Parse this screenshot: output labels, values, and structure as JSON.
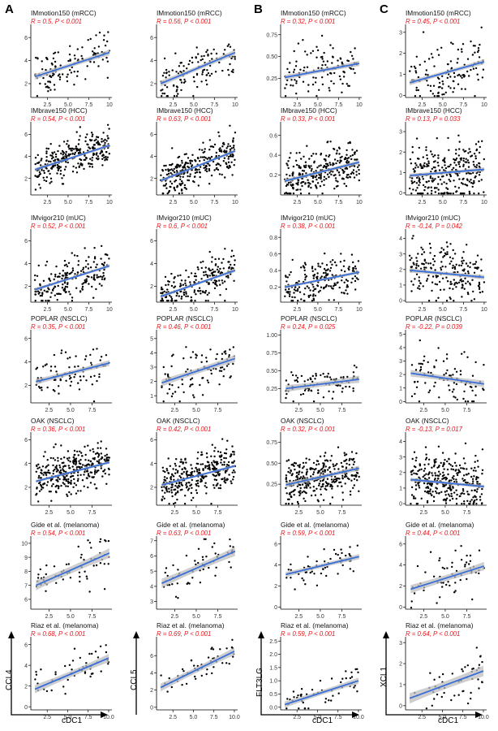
{
  "panel_letters": [
    "A",
    "B",
    "C"
  ],
  "colors": {
    "fit": "#3A6FD8",
    "band": "#BDBDBD",
    "point": "#000000",
    "stat": "#E8161B"
  },
  "axis_labels": {
    "x": "cDC1",
    "y": [
      "CCL4",
      "CCL5",
      "FLT3LG",
      "XCL1"
    ]
  },
  "cohorts": [
    "IMmotion150 (mRCC)",
    "IMbrave150 (HCC)",
    "IMvigor210 (mUC)",
    "POPLAR (NSCLC)",
    "OAK (NSCLC)",
    "Gide et al. (melanoma)",
    "Riaz et al. (melanoma)"
  ],
  "chart_data": [
    {
      "type": "scatter",
      "gene": "CCL4",
      "cohort": "IMmotion150 (mRCC)",
      "stat": "R = 0.5, P < 0.001",
      "xticks": [
        "2.5",
        "5.0",
        "7.5",
        "10"
      ],
      "yticks": [
        "2",
        "4",
        "6"
      ],
      "xlim": [
        0.5,
        10.3
      ],
      "ylim": [
        0.8,
        7.0
      ],
      "fit": [
        [
          1,
          2.6
        ],
        [
          10,
          4.7
        ]
      ],
      "band": 0.25,
      "n": 120,
      "sd": 0.9
    },
    {
      "type": "scatter",
      "gene": "CCL5",
      "cohort": "IMmotion150 (mRCC)",
      "stat": "R = 0.56, P < 0.001",
      "xticks": [
        "2.5",
        "5.0",
        "7.5",
        "10"
      ],
      "yticks": [
        "2",
        "4",
        "6"
      ],
      "xlim": [
        0.5,
        10.3
      ],
      "ylim": [
        0.8,
        7.0
      ],
      "fit": [
        [
          1,
          2.0
        ],
        [
          10,
          4.7
        ]
      ],
      "band": 0.25,
      "n": 120,
      "sd": 1.0
    },
    {
      "type": "scatter",
      "gene": "FLT3LG",
      "cohort": "IMmotion150 (mRCC)",
      "stat": "R = 0.32, P < 0.001",
      "xticks": [
        "2.5",
        "5.0",
        "7.5",
        "10"
      ],
      "yticks": [
        "0.25",
        "0.50",
        "0.75"
      ],
      "xlim": [
        0.5,
        10.3
      ],
      "ylim": [
        0.03,
        0.85
      ],
      "fit": [
        [
          1,
          0.26
        ],
        [
          10,
          0.42
        ]
      ],
      "band": 0.03,
      "n": 120,
      "sd": 0.13
    },
    {
      "type": "scatter",
      "gene": "XCL1",
      "cohort": "IMmotion150 (mRCC)",
      "stat": "R = 0.45, P < 0.001",
      "xticks": [
        "2.5",
        "5.0",
        "7.5",
        "10"
      ],
      "yticks": [
        "0",
        "1",
        "2",
        "3"
      ],
      "xlim": [
        0.5,
        10.3
      ],
      "ylim": [
        -0.1,
        3.3
      ],
      "fit": [
        [
          1,
          0.6
        ],
        [
          10,
          1.6
        ]
      ],
      "band": 0.12,
      "n": 120,
      "sd": 0.65
    },
    {
      "type": "scatter",
      "gene": "CCL4",
      "cohort": "IMbrave150 (HCC)",
      "stat": "R = 0.54, P < 0.001",
      "xticks": [
        "2.5",
        "5.0",
        "7.5",
        "10"
      ],
      "yticks": [
        "2",
        "4",
        "6"
      ],
      "xlim": [
        0.5,
        10.3
      ],
      "ylim": [
        0.5,
        7.0
      ],
      "fit": [
        [
          1,
          2.8
        ],
        [
          10,
          5.0
        ]
      ],
      "band": 0.15,
      "n": 280,
      "sd": 0.85
    },
    {
      "type": "scatter",
      "gene": "CCL5",
      "cohort": "IMbrave150 (HCC)",
      "stat": "R = 0.63, P < 0.001",
      "xticks": [
        "2.5",
        "5.0",
        "7.5",
        "10"
      ],
      "yticks": [
        "2",
        "4",
        "6"
      ],
      "xlim": [
        0.5,
        10.3
      ],
      "ylim": [
        0.5,
        7.0
      ],
      "fit": [
        [
          1,
          1.8
        ],
        [
          10,
          4.5
        ]
      ],
      "band": 0.15,
      "n": 280,
      "sd": 0.85
    },
    {
      "type": "scatter",
      "gene": "FLT3LG",
      "cohort": "IMbrave150 (HCC)",
      "stat": "R = 0.33, P < 0.001",
      "xticks": [
        "2.5",
        "5.0",
        "7.5",
        "10"
      ],
      "yticks": [
        "0.2",
        "0.4",
        "0.6"
      ],
      "xlim": [
        0.5,
        10.3
      ],
      "ylim": [
        0.0,
        0.72
      ],
      "fit": [
        [
          1,
          0.14
        ],
        [
          10,
          0.33
        ]
      ],
      "band": 0.02,
      "n": 280,
      "sd": 0.11
    },
    {
      "type": "scatter",
      "gene": "XCL1",
      "cohort": "IMbrave150 (HCC)",
      "stat": "R = 0.13, P = 0.033",
      "xticks": [
        "2.5",
        "5.0",
        "7.5",
        "10"
      ],
      "yticks": [
        "0",
        "1",
        "2",
        "3"
      ],
      "xlim": [
        0.5,
        10.3
      ],
      "ylim": [
        -0.1,
        3.4
      ],
      "fit": [
        [
          1,
          0.85
        ],
        [
          10,
          1.15
        ]
      ],
      "band": 0.1,
      "n": 280,
      "sd": 0.7
    },
    {
      "type": "scatter",
      "gene": "CCL4",
      "cohort": "IMvigor210 (mUC)",
      "stat": "R = 0.52, P < 0.001",
      "xticks": [
        "2.5",
        "5.0",
        "7.5",
        "10"
      ],
      "yticks": [
        "2",
        "4",
        "6"
      ],
      "xlim": [
        0.5,
        10.3
      ],
      "ylim": [
        0.6,
        6.9
      ],
      "fit": [
        [
          1,
          1.7
        ],
        [
          10,
          3.8
        ]
      ],
      "band": 0.15,
      "n": 200,
      "sd": 0.9
    },
    {
      "type": "scatter",
      "gene": "CCL5",
      "cohort": "IMvigor210 (mUC)",
      "stat": "R = 0.6, P < 0.001",
      "xticks": [
        "2.5",
        "5.0",
        "7.5",
        "10"
      ],
      "yticks": [
        "2",
        "4",
        "6"
      ],
      "xlim": [
        0.5,
        10.3
      ],
      "ylim": [
        0.6,
        6.9
      ],
      "fit": [
        [
          1,
          1.1
        ],
        [
          10,
          3.4
        ]
      ],
      "band": 0.15,
      "n": 200,
      "sd": 0.8
    },
    {
      "type": "scatter",
      "gene": "FLT3LG",
      "cohort": "IMvigor210 (mUC)",
      "stat": "R = 0.38, P < 0.001",
      "xticks": [
        "2.5",
        "5.0",
        "7.5",
        "10"
      ],
      "yticks": [
        "0.2",
        "0.4",
        "0.6",
        "0.8"
      ],
      "xlim": [
        0.5,
        10.3
      ],
      "ylim": [
        0.02,
        0.88
      ],
      "fit": [
        [
          1,
          0.2
        ],
        [
          10,
          0.38
        ]
      ],
      "band": 0.02,
      "n": 200,
      "sd": 0.12
    },
    {
      "type": "scatter",
      "gene": "XCL1",
      "cohort": "IMvigor210 (mUC)",
      "stat": "R = -0.14, P = 0.042",
      "xticks": [
        "2.5",
        "5.0",
        "7.5",
        "10"
      ],
      "yticks": [
        "0",
        "1",
        "2",
        "3",
        "4"
      ],
      "xlim": [
        0.5,
        10.3
      ],
      "ylim": [
        -0.1,
        4.5
      ],
      "fit": [
        [
          1,
          1.95
        ],
        [
          10,
          1.5
        ]
      ],
      "band": 0.15,
      "n": 200,
      "sd": 0.9
    },
    {
      "type": "scatter",
      "gene": "CCL4",
      "cohort": "POPLAR (NSCLC)",
      "stat": "R = 0.35, P < 0.001",
      "xticks": [
        "2.5",
        "5.0",
        "7.5"
      ],
      "yticks": [
        "2",
        "4",
        "6"
      ],
      "xlim": [
        0.4,
        9.8
      ],
      "ylim": [
        0.5,
        6.6
      ],
      "fit": [
        [
          1,
          2.3
        ],
        [
          9.5,
          3.9
        ]
      ],
      "band": 0.25,
      "n": 90,
      "sd": 0.9
    },
    {
      "type": "scatter",
      "gene": "CCL5",
      "cohort": "POPLAR (NSCLC)",
      "stat": "R = 0.46, P < 0.001",
      "xticks": [
        "2.5",
        "5.0",
        "7.5"
      ],
      "yticks": [
        "1",
        "2",
        "3",
        "4",
        "5"
      ],
      "xlim": [
        0.4,
        9.8
      ],
      "ylim": [
        0.5,
        5.5
      ],
      "fit": [
        [
          1,
          1.9
        ],
        [
          9.5,
          3.6
        ]
      ],
      "band": 0.25,
      "n": 90,
      "sd": 0.8
    },
    {
      "type": "scatter",
      "gene": "FLT3LG",
      "cohort": "POPLAR (NSCLC)",
      "stat": "R = 0.24, P = 0.025",
      "xticks": [
        "2.5",
        "5.0",
        "7.5"
      ],
      "yticks": [
        "0.25",
        "0.50",
        "0.75",
        "1.00"
      ],
      "xlim": [
        0.4,
        9.8
      ],
      "ylim": [
        0.05,
        1.05
      ],
      "fit": [
        [
          1,
          0.25
        ],
        [
          9.5,
          0.38
        ]
      ],
      "band": 0.05,
      "n": 90,
      "sd": 0.1
    },
    {
      "type": "scatter",
      "gene": "XCL1",
      "cohort": "POPLAR (NSCLC)",
      "stat": "R = -0.22, P = 0.039",
      "xticks": [
        "2.5",
        "5.0",
        "7.5"
      ],
      "yticks": [
        "0",
        "1",
        "2",
        "3",
        "4",
        "5"
      ],
      "xlim": [
        0.4,
        9.8
      ],
      "ylim": [
        -0.1,
        5.2
      ],
      "fit": [
        [
          1,
          2.1
        ],
        [
          9.5,
          1.3
        ]
      ],
      "band": 0.25,
      "n": 90,
      "sd": 1.1
    },
    {
      "type": "scatter",
      "gene": "CCL4",
      "cohort": "OAK (NSCLC)",
      "stat": "R = 0.36, P < 0.001",
      "xticks": [
        "2.5",
        "5.0",
        "7.5"
      ],
      "yticks": [
        "2",
        "4",
        "6"
      ],
      "xlim": [
        0.4,
        9.8
      ],
      "ylim": [
        0.5,
        6.5
      ],
      "fit": [
        [
          1,
          2.5
        ],
        [
          9.5,
          4.1
        ]
      ],
      "band": 0.12,
      "n": 320,
      "sd": 0.9
    },
    {
      "type": "scatter",
      "gene": "CCL5",
      "cohort": "OAK (NSCLC)",
      "stat": "R = 0.42, P < 0.001",
      "xticks": [
        "2.5",
        "5.0",
        "7.5"
      ],
      "yticks": [
        "2",
        "4",
        "6"
      ],
      "xlim": [
        0.4,
        9.8
      ],
      "ylim": [
        0.5,
        6.5
      ],
      "fit": [
        [
          1,
          2.2
        ],
        [
          9.5,
          3.8
        ]
      ],
      "band": 0.12,
      "n": 320,
      "sd": 0.9
    },
    {
      "type": "scatter",
      "gene": "FLT3LG",
      "cohort": "OAK (NSCLC)",
      "stat": "R = 0.32, P < 0.001",
      "xticks": [
        "2.5",
        "5.0",
        "7.5"
      ],
      "yticks": [
        "0.25",
        "0.50",
        "0.75"
      ],
      "xlim": [
        0.4,
        9.8
      ],
      "ylim": [
        0.0,
        0.85
      ],
      "fit": [
        [
          1,
          0.24
        ],
        [
          9.5,
          0.44
        ]
      ],
      "band": 0.03,
      "n": 320,
      "sd": 0.13
    },
    {
      "type": "scatter",
      "gene": "XCL1",
      "cohort": "OAK (NSCLC)",
      "stat": "R = -0.13, P = 0.017",
      "xticks": [
        "2.5",
        "5.0",
        "7.5"
      ],
      "yticks": [
        "0",
        "1",
        "2",
        "3",
        "4"
      ],
      "xlim": [
        0.4,
        9.8
      ],
      "ylim": [
        -0.1,
        4.5
      ],
      "fit": [
        [
          1,
          1.55
        ],
        [
          9.5,
          1.1
        ]
      ],
      "band": 0.12,
      "n": 320,
      "sd": 0.9
    },
    {
      "type": "scatter",
      "gene": "CCL4",
      "cohort": "Gide et al. (melanoma)",
      "stat": "R = 0.54, P < 0.001",
      "xticks": [
        "2.5",
        "5.0",
        "7.5"
      ],
      "yticks": [
        "6",
        "7",
        "8",
        "9",
        "10"
      ],
      "xlim": [
        0.4,
        9.8
      ],
      "ylim": [
        5.3,
        10.4
      ],
      "fit": [
        [
          1,
          7.0
        ],
        [
          9.5,
          9.3
        ]
      ],
      "band": 0.35,
      "n": 60,
      "sd": 0.9
    },
    {
      "type": "scatter",
      "gene": "CCL5",
      "cohort": "Gide et al. (melanoma)",
      "stat": "R = 0.63, P < 0.001",
      "xticks": [
        "2.5",
        "5.0",
        "7.5"
      ],
      "yticks": [
        "3",
        "4",
        "5",
        "6",
        "7"
      ],
      "xlim": [
        0.4,
        9.8
      ],
      "ylim": [
        2.5,
        7.2
      ],
      "fit": [
        [
          1,
          4.2
        ],
        [
          9.5,
          6.3
        ]
      ],
      "band": 0.3,
      "n": 60,
      "sd": 0.7
    },
    {
      "type": "scatter",
      "gene": "FLT3LG",
      "cohort": "Gide et al. (melanoma)",
      "stat": "R = 0.59, P < 0.001",
      "xticks": [
        "2.5",
        "5.0",
        "7.5"
      ],
      "yticks": [
        "0",
        "2",
        "4",
        "6"
      ],
      "xlim": [
        0.4,
        9.8
      ],
      "ylim": [
        -0.2,
        6.6
      ],
      "fit": [
        [
          1,
          3.1
        ],
        [
          9.5,
          4.8
        ]
      ],
      "band": 0.25,
      "n": 60,
      "sd": 0.7
    },
    {
      "type": "scatter",
      "gene": "XCL1",
      "cohort": "Gide et al. (melanoma)",
      "stat": "R = 0.44, P < 0.001",
      "xticks": [
        "2.5",
        "5.0",
        "7.5"
      ],
      "yticks": [
        "0",
        "2",
        "4",
        "6"
      ],
      "xlim": [
        0.4,
        9.8
      ],
      "ylim": [
        -0.2,
        6.6
      ],
      "fit": [
        [
          1,
          1.7
        ],
        [
          9.5,
          3.9
        ]
      ],
      "band": 0.4,
      "n": 60,
      "sd": 1.2
    },
    {
      "type": "scatter",
      "gene": "CCL4",
      "cohort": "Riaz et al. (melanoma)",
      "stat": "R = 0.68, P < 0.001",
      "xticks": [
        "2.5",
        "5.0",
        "7.5",
        "10.0"
      ],
      "yticks": [
        "0",
        "2",
        "4",
        "6"
      ],
      "xlim": [
        0.5,
        10.4
      ],
      "ylim": [
        -0.3,
        6.6
      ],
      "fit": [
        [
          1,
          1.7
        ],
        [
          10,
          4.7
        ]
      ],
      "band": 0.4,
      "n": 50,
      "sd": 0.9
    },
    {
      "type": "scatter",
      "gene": "CCL5",
      "cohort": "Riaz et al. (melanoma)",
      "stat": "R = 0.69, P < 0.001",
      "xticks": [
        "2.5",
        "5.0",
        "7.5",
        "10.0"
      ],
      "yticks": [
        "0",
        "2",
        "4",
        "6"
      ],
      "xlim": [
        0.5,
        10.4
      ],
      "ylim": [
        -0.3,
        8.0
      ],
      "fit": [
        [
          1,
          2.3
        ],
        [
          10,
          6.5
        ]
      ],
      "band": 0.45,
      "n": 50,
      "sd": 1.0
    },
    {
      "type": "scatter",
      "gene": "FLT3LG",
      "cohort": "Riaz et al. (melanoma)",
      "stat": "R = 0.59, P < 0.001",
      "xticks": [
        "2.5",
        "5.0",
        "7.5",
        "10.0"
      ],
      "yticks": [
        "0.0",
        "0.5",
        "1.0",
        "1.5",
        "2.0",
        "2.5"
      ],
      "xlim": [
        0.5,
        10.4
      ],
      "ylim": [
        -0.1,
        2.6
      ],
      "fit": [
        [
          1,
          0.1
        ],
        [
          10,
          1.0
        ]
      ],
      "band": 0.12,
      "n": 50,
      "sd": 0.3
    },
    {
      "type": "scatter",
      "gene": "XCL1",
      "cohort": "Riaz et al. (melanoma)",
      "stat": "R = 0.64, P < 0.001",
      "xticks": [
        "2.5",
        "5.0",
        "7.5",
        "10.0"
      ],
      "yticks": [
        "0",
        "1",
        "2",
        "3"
      ],
      "xlim": [
        0.5,
        10.4
      ],
      "ylim": [
        -0.2,
        3.2
      ],
      "fit": [
        [
          1,
          0.35
        ],
        [
          10,
          1.65
        ]
      ],
      "band": 0.25,
      "n": 50,
      "sd": 0.55
    }
  ]
}
